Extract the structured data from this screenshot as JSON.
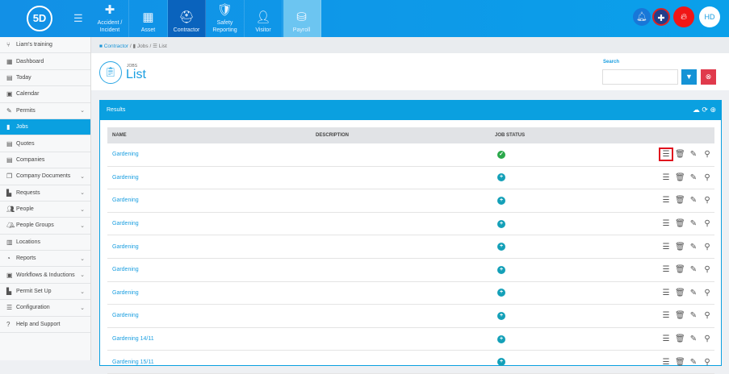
{
  "topbar": {
    "logo": "5D",
    "modules": [
      {
        "label": "Accident / Incident",
        "icon": "first-aid-kit-icon"
      },
      {
        "label": "Asset",
        "icon": "boxes-icon"
      },
      {
        "label": "Contractor",
        "icon": "hard-hat-icon"
      },
      {
        "label": "Safety Reporting",
        "icon": "safety-doc-icon"
      },
      {
        "label": "Visitor",
        "icon": "user-icon"
      },
      {
        "label": "Payroll",
        "icon": "coins-icon"
      }
    ],
    "active": "Contractor",
    "avatar": "HD"
  },
  "sidebar": {
    "items": [
      {
        "label": "Liam's training",
        "chev": false
      },
      {
        "label": "Dashboard",
        "chev": false
      },
      {
        "label": "Today",
        "chev": false
      },
      {
        "label": "Calendar",
        "chev": false
      },
      {
        "label": "Permits",
        "chev": true
      },
      {
        "label": "Jobs",
        "chev": false,
        "active": true
      },
      {
        "label": "Quotes",
        "chev": false
      },
      {
        "label": "Companies",
        "chev": false
      },
      {
        "label": "Company Documents",
        "chev": true
      },
      {
        "label": "Requests",
        "chev": true
      },
      {
        "label": "People",
        "chev": true
      },
      {
        "label": "People Groups",
        "chev": true
      },
      {
        "label": "Locations",
        "chev": false
      },
      {
        "label": "Reports",
        "chev": true
      },
      {
        "label": "Workflows & Inductions",
        "chev": true
      },
      {
        "label": "Permit Set Up",
        "chev": true
      },
      {
        "label": "Configuration",
        "chev": true
      },
      {
        "label": "Help and Support",
        "chev": false
      }
    ]
  },
  "breadcrumb": [
    "Contractor",
    "Jobs",
    "List"
  ],
  "header": {
    "tag": "JOBS",
    "title": "List",
    "search_label": "Search",
    "search_value": ""
  },
  "results": {
    "title": "Results",
    "columns": [
      "NAME",
      "DESCRIPTION",
      "JOB STATUS"
    ],
    "rows": [
      {
        "name": "Gardening",
        "status": "complete"
      },
      {
        "name": "Gardening",
        "status": "open"
      },
      {
        "name": "Gardening",
        "status": "open"
      },
      {
        "name": "Gardening",
        "status": "open"
      },
      {
        "name": "Gardening",
        "status": "open"
      },
      {
        "name": "Gardening",
        "status": "open"
      },
      {
        "name": "Gardening",
        "status": "open"
      },
      {
        "name": "Gardening",
        "status": "open"
      },
      {
        "name": "Gardening 14/11",
        "status": "open"
      },
      {
        "name": "Gardening 15/11",
        "status": "open"
      }
    ]
  },
  "colors": {
    "primary": "#0aa0e0",
    "active_tile": "#0a63bd",
    "complete": "#2aa84a",
    "open": "#14a0b8",
    "delete": "#e03a4c"
  }
}
